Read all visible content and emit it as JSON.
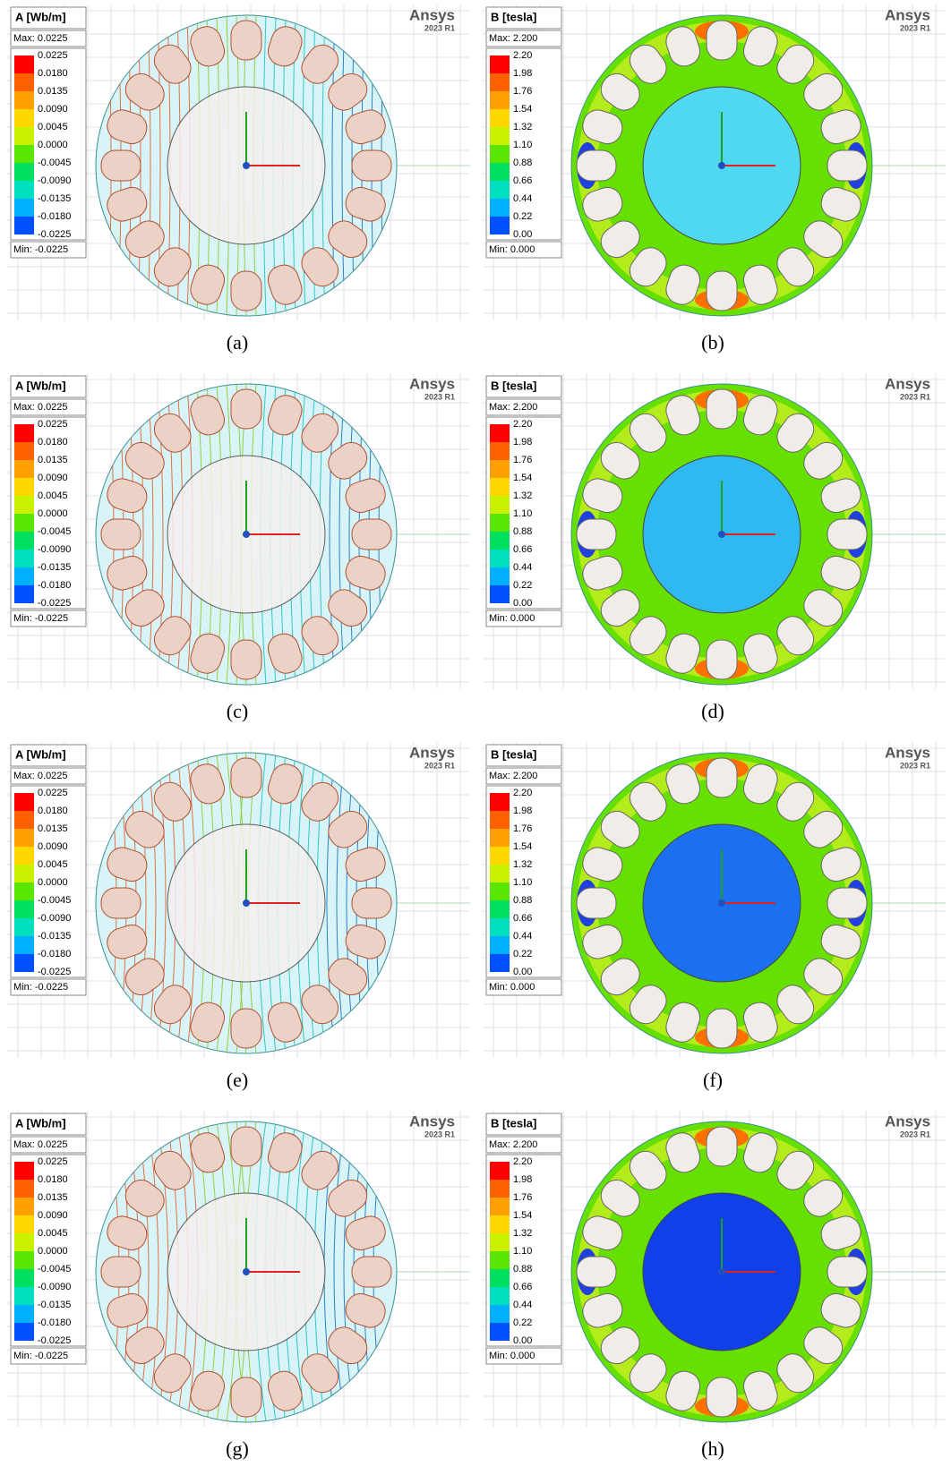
{
  "brand": "Ansys",
  "version": "2023 R1",
  "legends": {
    "A": {
      "title": "A [Wb/m]",
      "max": "Max: 0.0225",
      "min": "Min: -0.0225",
      "levels": [
        "0.0225",
        "0.0180",
        "0.0135",
        "0.0090",
        "0.0045",
        "0.0000",
        "-0.0045",
        "-0.0090",
        "-0.0135",
        "-0.0180",
        "-0.0225"
      ]
    },
    "B": {
      "title": "B [tesla]",
      "max": "Max: 2.200",
      "min": "Min: 0.000",
      "levels": [
        "2.20",
        "1.98",
        "1.76",
        "1.54",
        "1.32",
        "1.10",
        "0.88",
        "0.66",
        "0.44",
        "0.22",
        "0.00"
      ]
    }
  },
  "panels": [
    {
      "caption": "(a)",
      "legend": "A"
    },
    {
      "caption": "(b)",
      "legend": "B"
    },
    {
      "caption": "(c)",
      "legend": "A"
    },
    {
      "caption": "(d)",
      "legend": "B"
    },
    {
      "caption": "(e)",
      "legend": "A"
    },
    {
      "caption": "(f)",
      "legend": "B"
    },
    {
      "caption": "(g)",
      "legend": "A"
    },
    {
      "caption": "(h)",
      "legend": "B"
    }
  ]
}
